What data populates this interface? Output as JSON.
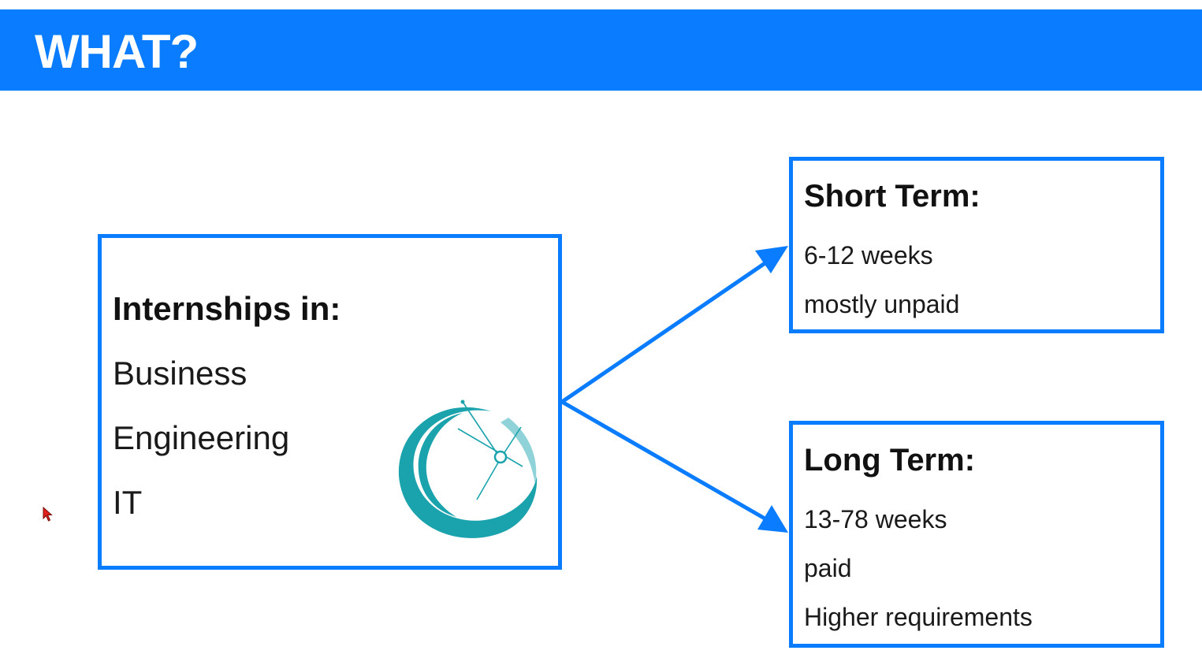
{
  "colors": {
    "accent": "#0a7cff",
    "title_text": "#ffffff",
    "logo": "#1aa3ad",
    "logo_light": "#8fd3d8",
    "cursor": "#e0201a"
  },
  "header": {
    "title": "WHAT?"
  },
  "main_box": {
    "heading": "Internships in:",
    "items": [
      "Business",
      "Engineering",
      "IT"
    ],
    "logo_icon": "globe-orbit-logo"
  },
  "short_term": {
    "heading": "Short Term:",
    "items": [
      "6-12 weeks",
      "mostly unpaid"
    ]
  },
  "long_term": {
    "heading": "Long Term:",
    "items": [
      "13-78 weeks",
      "paid",
      "Higher requirements"
    ]
  },
  "cursor_icon": "mouse-pointer-icon"
}
